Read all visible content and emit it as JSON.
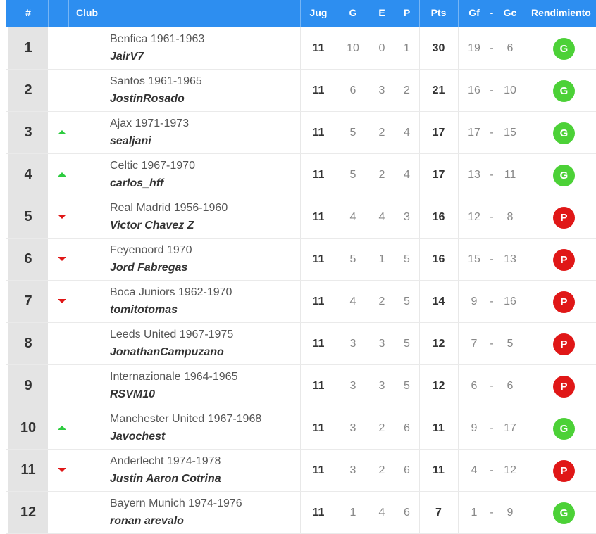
{
  "header": {
    "pos": "#",
    "club": "Club",
    "jug": "Jug",
    "g": "G",
    "e": "E",
    "p": "P",
    "pts": "Pts",
    "gf": "Gf",
    "dash": "-",
    "gc": "Gc",
    "rend": "Rendimiento"
  },
  "colors": {
    "header": "#2d8ef0",
    "up": "#2ecc40",
    "down": "#e01717",
    "badge_g": "#4cd137",
    "badge_p": "#e01717"
  },
  "rows": [
    {
      "pos": "1",
      "trend": "none",
      "club": "Benfica 1961-1963",
      "user": "JairV7",
      "jug": "11",
      "g": "10",
      "e": "0",
      "p": "1",
      "pts": "30",
      "gf": "19",
      "gc": "6",
      "rend": "G"
    },
    {
      "pos": "2",
      "trend": "none",
      "club": "Santos 1961-1965",
      "user": "JostinRosado",
      "jug": "11",
      "g": "6",
      "e": "3",
      "p": "2",
      "pts": "21",
      "gf": "16",
      "gc": "10",
      "rend": "G"
    },
    {
      "pos": "3",
      "trend": "up",
      "club": "Ajax 1971-1973",
      "user": "sealjani",
      "jug": "11",
      "g": "5",
      "e": "2",
      "p": "4",
      "pts": "17",
      "gf": "17",
      "gc": "15",
      "rend": "G"
    },
    {
      "pos": "4",
      "trend": "up",
      "club": "Celtic 1967-1970",
      "user": "carlos_hff",
      "jug": "11",
      "g": "5",
      "e": "2",
      "p": "4",
      "pts": "17",
      "gf": "13",
      "gc": "11",
      "rend": "G"
    },
    {
      "pos": "5",
      "trend": "down",
      "club": "Real Madrid 1956-1960",
      "user": "Victor Chavez Z",
      "jug": "11",
      "g": "4",
      "e": "4",
      "p": "3",
      "pts": "16",
      "gf": "12",
      "gc": "8",
      "rend": "P"
    },
    {
      "pos": "6",
      "trend": "down",
      "club": "Feyenoord 1970",
      "user": "Jord Fabregas",
      "jug": "11",
      "g": "5",
      "e": "1",
      "p": "5",
      "pts": "16",
      "gf": "15",
      "gc": "13",
      "rend": "P"
    },
    {
      "pos": "7",
      "trend": "down",
      "club": "Boca Juniors 1962-1970",
      "user": "tomitotomas",
      "jug": "11",
      "g": "4",
      "e": "2",
      "p": "5",
      "pts": "14",
      "gf": "9",
      "gc": "16",
      "rend": "P"
    },
    {
      "pos": "8",
      "trend": "none",
      "club": "Leeds United 1967-1975",
      "user": "JonathanCampuzano",
      "jug": "11",
      "g": "3",
      "e": "3",
      "p": "5",
      "pts": "12",
      "gf": "7",
      "gc": "5",
      "rend": "P"
    },
    {
      "pos": "9",
      "trend": "none",
      "club": "Internazionale 1964-1965",
      "user": "RSVM10",
      "jug": "11",
      "g": "3",
      "e": "3",
      "p": "5",
      "pts": "12",
      "gf": "6",
      "gc": "6",
      "rend": "P"
    },
    {
      "pos": "10",
      "trend": "up",
      "club": "Manchester United 1967-1968",
      "user": "Javochest",
      "jug": "11",
      "g": "3",
      "e": "2",
      "p": "6",
      "pts": "11",
      "gf": "9",
      "gc": "17",
      "rend": "G"
    },
    {
      "pos": "11",
      "trend": "down",
      "club": "Anderlecht 1974-1978",
      "user": "Justin Aaron Cotrina",
      "jug": "11",
      "g": "3",
      "e": "2",
      "p": "6",
      "pts": "11",
      "gf": "4",
      "gc": "12",
      "rend": "P"
    },
    {
      "pos": "12",
      "trend": "none",
      "club": "Bayern Munich 1974-1976",
      "user": "ronan arevalo",
      "jug": "11",
      "g": "1",
      "e": "4",
      "p": "6",
      "pts": "7",
      "gf": "1",
      "gc": "9",
      "rend": "G"
    }
  ]
}
